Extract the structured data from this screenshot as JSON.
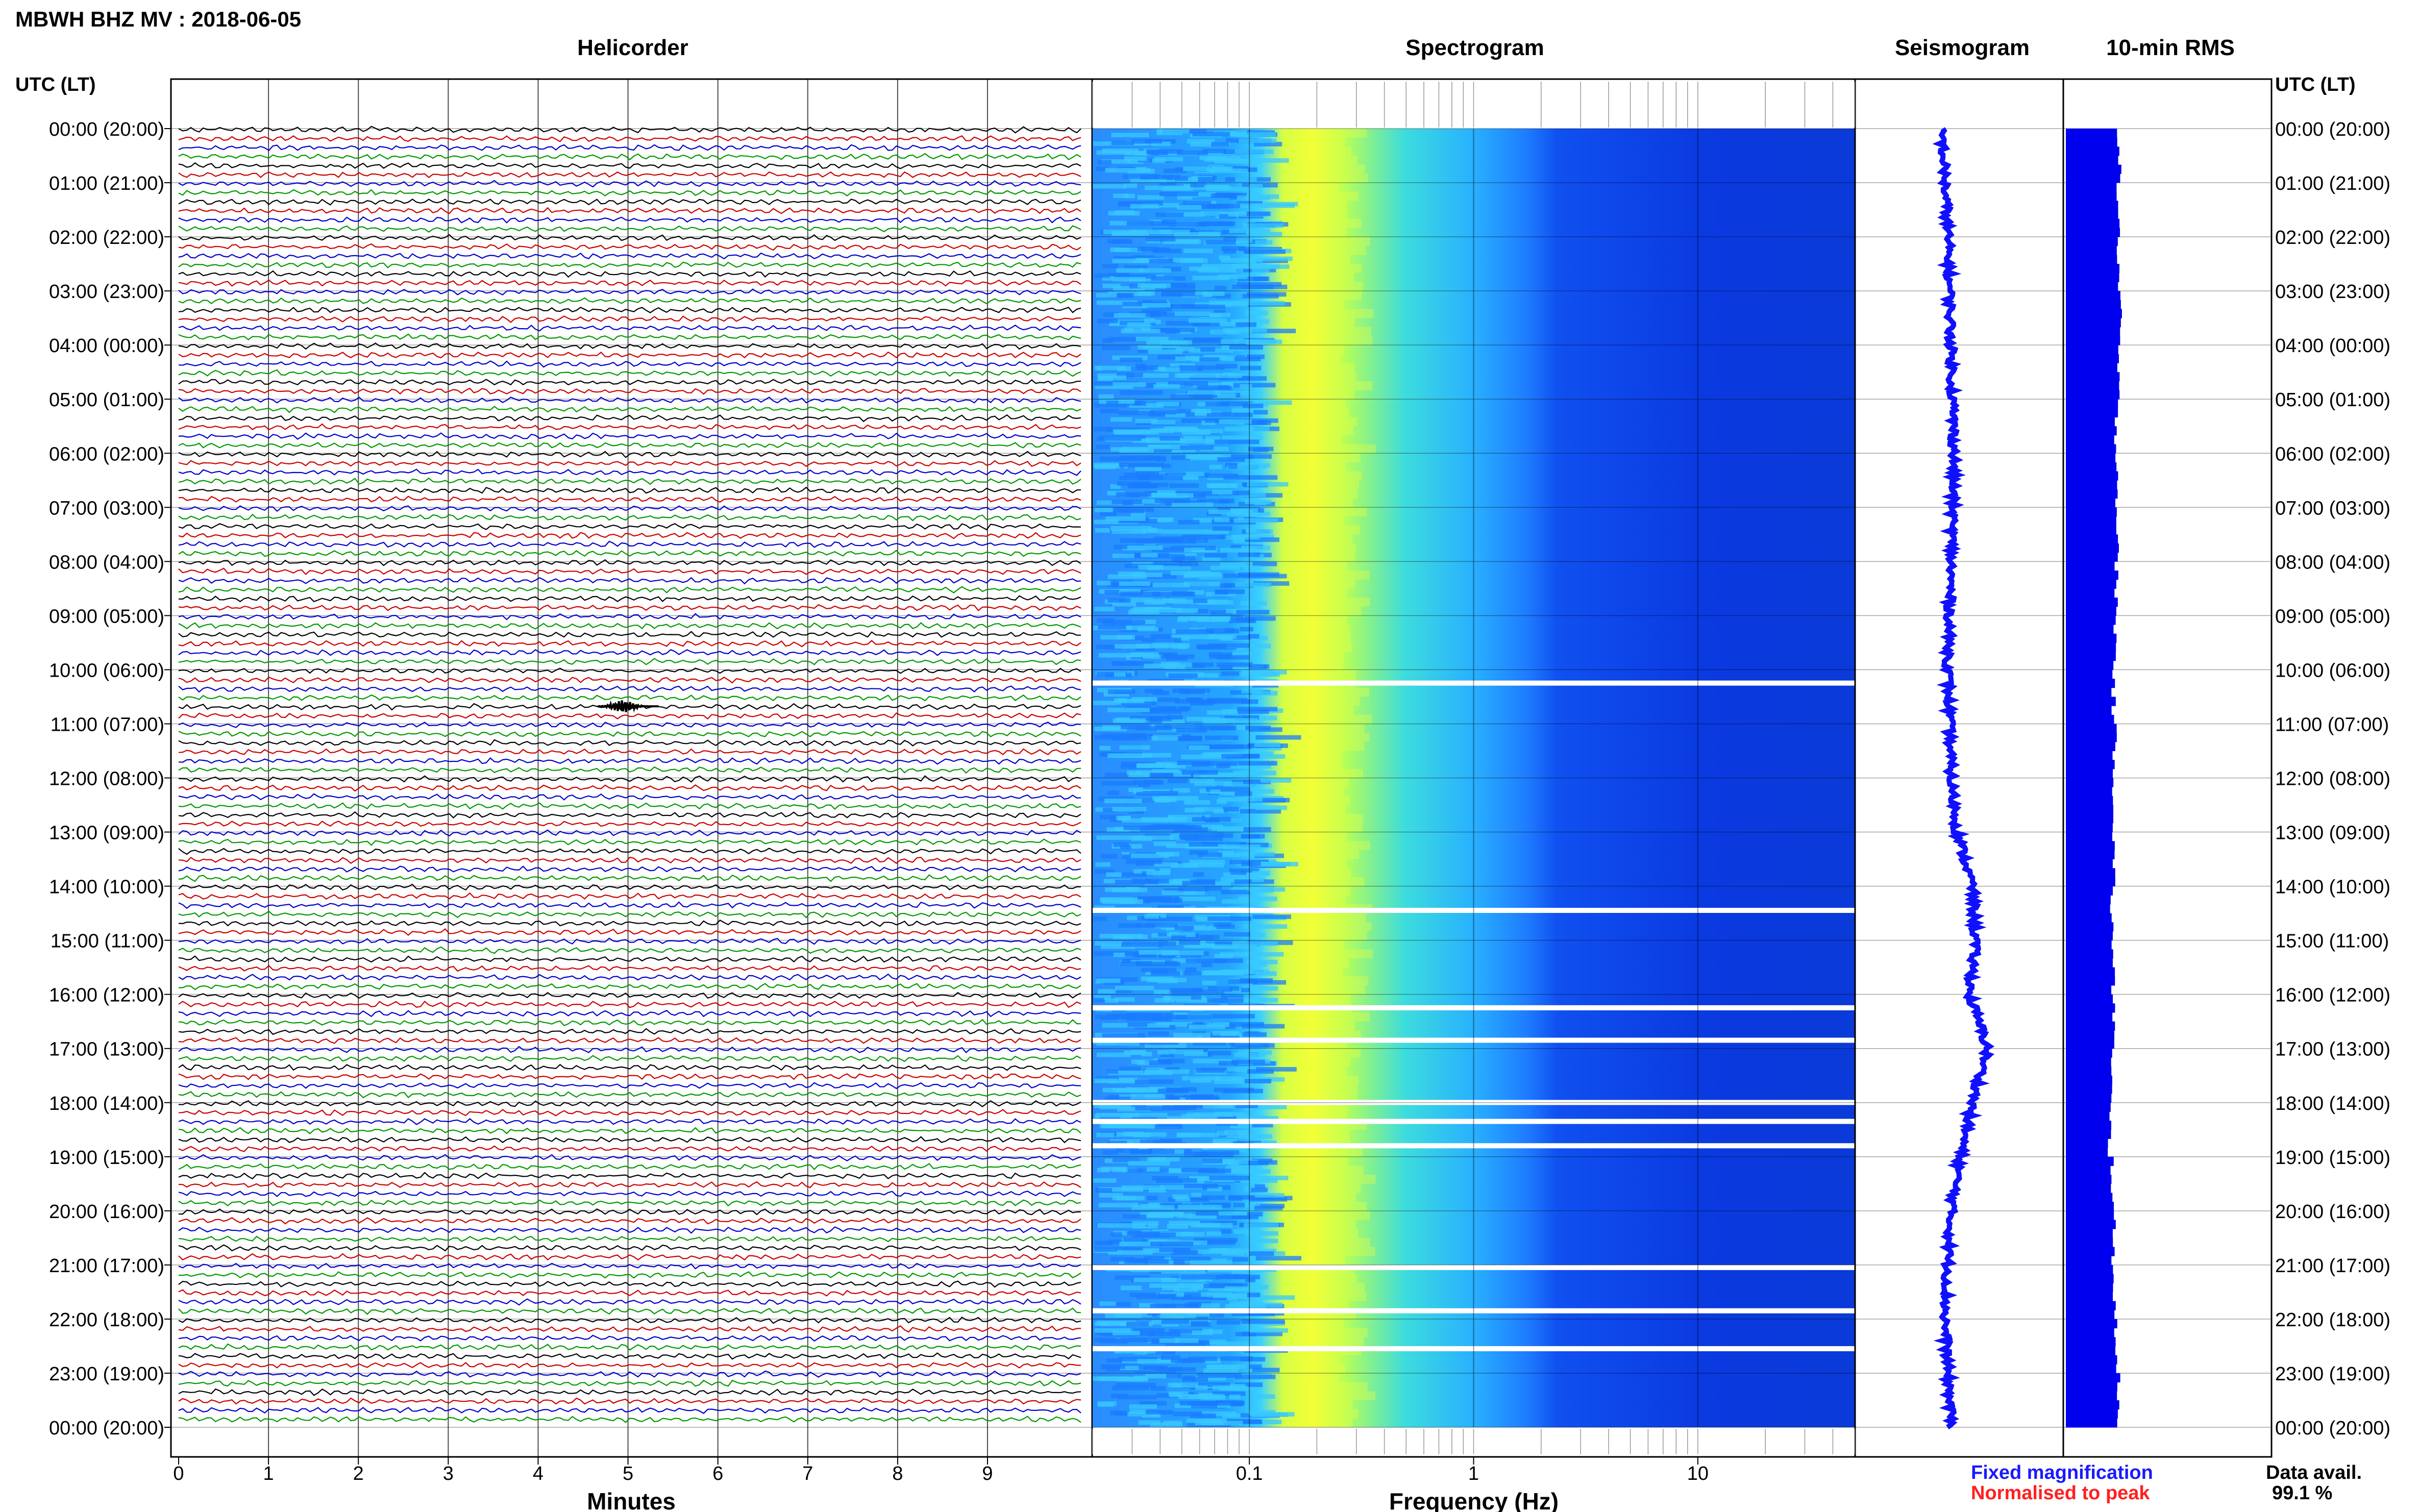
{
  "header": {
    "station_title": "MBWH BHZ MV : 2018-06-05"
  },
  "panels": {
    "helicorder": "Helicorder",
    "spectrogram": "Spectrogram",
    "seismogram": "Seismogram",
    "rms": "10-min RMS"
  },
  "axes": {
    "time_axis_title": "UTC (LT)",
    "time_labels": [
      "00:00 (20:00)",
      "01:00 (21:00)",
      "02:00 (22:00)",
      "03:00 (23:00)",
      "04:00 (00:00)",
      "05:00 (01:00)",
      "06:00 (02:00)",
      "07:00 (03:00)",
      "08:00 (04:00)",
      "09:00 (05:00)",
      "10:00 (06:00)",
      "11:00 (07:00)",
      "12:00 (08:00)",
      "13:00 (09:00)",
      "14:00 (10:00)",
      "15:00 (11:00)",
      "16:00 (12:00)",
      "17:00 (13:00)",
      "18:00 (14:00)",
      "19:00 (15:00)",
      "20:00 (16:00)",
      "21:00 (17:00)",
      "22:00 (18:00)",
      "23:00 (19:00)",
      "00:00 (20:00)"
    ],
    "minutes_xlabel": "Minutes",
    "minutes_ticks": [
      "0",
      "1",
      "2",
      "3",
      "4",
      "5",
      "6",
      "7",
      "8",
      "9"
    ],
    "frequency_xlabel": "Frequency (Hz)",
    "frequency_ticks": [
      "0.1",
      "1",
      "10"
    ]
  },
  "legend": {
    "fixed": "Fixed magnification",
    "fixed_color": "#1a1aff",
    "normalised": "Normalised to peak",
    "normalised_color": "#ff2020"
  },
  "availability": {
    "label": "Data avail.",
    "value": "99.1 %"
  },
  "chart_data": {
    "type": "heatmap",
    "helicorder": {
      "minutes_per_line": 10,
      "lines": 144,
      "trace_colors": [
        "#000000",
        "#cc0000",
        "#0000cc",
        "#009900"
      ],
      "x_range_minutes": [
        0,
        10
      ],
      "event": {
        "hour_utc": 10,
        "minute": 5,
        "description_visible": false
      }
    },
    "spectrogram": {
      "freq_range_hz": [
        0.02,
        50
      ],
      "log_scale": true,
      "colormap": [
        "#0000cc",
        "#1f60ff",
        "#21a6ff",
        "#40e0d0",
        "#ffff33"
      ],
      "peak_band_hz": 0.25,
      "gap_hours_utc": [
        10.2,
        14.4,
        16.2,
        16.8,
        17.95,
        18.3,
        18.75,
        21.0,
        21.8,
        22.5
      ]
    },
    "seismogram_offset_profile": [
      {
        "hour": 0,
        "value": 0.0
      },
      {
        "hour": 2,
        "value": 0.2
      },
      {
        "hour": 4,
        "value": 0.3
      },
      {
        "hour": 6,
        "value": 0.4
      },
      {
        "hour": 8,
        "value": 0.3
      },
      {
        "hour": 10,
        "value": 0.2
      },
      {
        "hour": 12,
        "value": 0.3
      },
      {
        "hour": 13,
        "value": 0.5
      },
      {
        "hour": 14,
        "value": 1.0
      },
      {
        "hour": 15,
        "value": 1.1
      },
      {
        "hour": 16,
        "value": 0.9
      },
      {
        "hour": 17,
        "value": 1.5
      },
      {
        "hour": 18,
        "value": 1.0
      },
      {
        "hour": 19,
        "value": 0.6
      },
      {
        "hour": 20,
        "value": 0.3
      },
      {
        "hour": 21,
        "value": 0.2
      },
      {
        "hour": 22,
        "value": 0.1
      },
      {
        "hour": 24,
        "value": 0.3
      }
    ],
    "rms_color": "#0000ee",
    "rms_relative": [
      0.95,
      0.93,
      0.94,
      0.96,
      0.93,
      0.9,
      0.92,
      0.91,
      0.9,
      0.88,
      0.85,
      0.87,
      0.86,
      0.85,
      0.82,
      0.84,
      0.86,
      0.8,
      0.78,
      0.83,
      0.85,
      0.86,
      0.9,
      0.93
    ]
  }
}
